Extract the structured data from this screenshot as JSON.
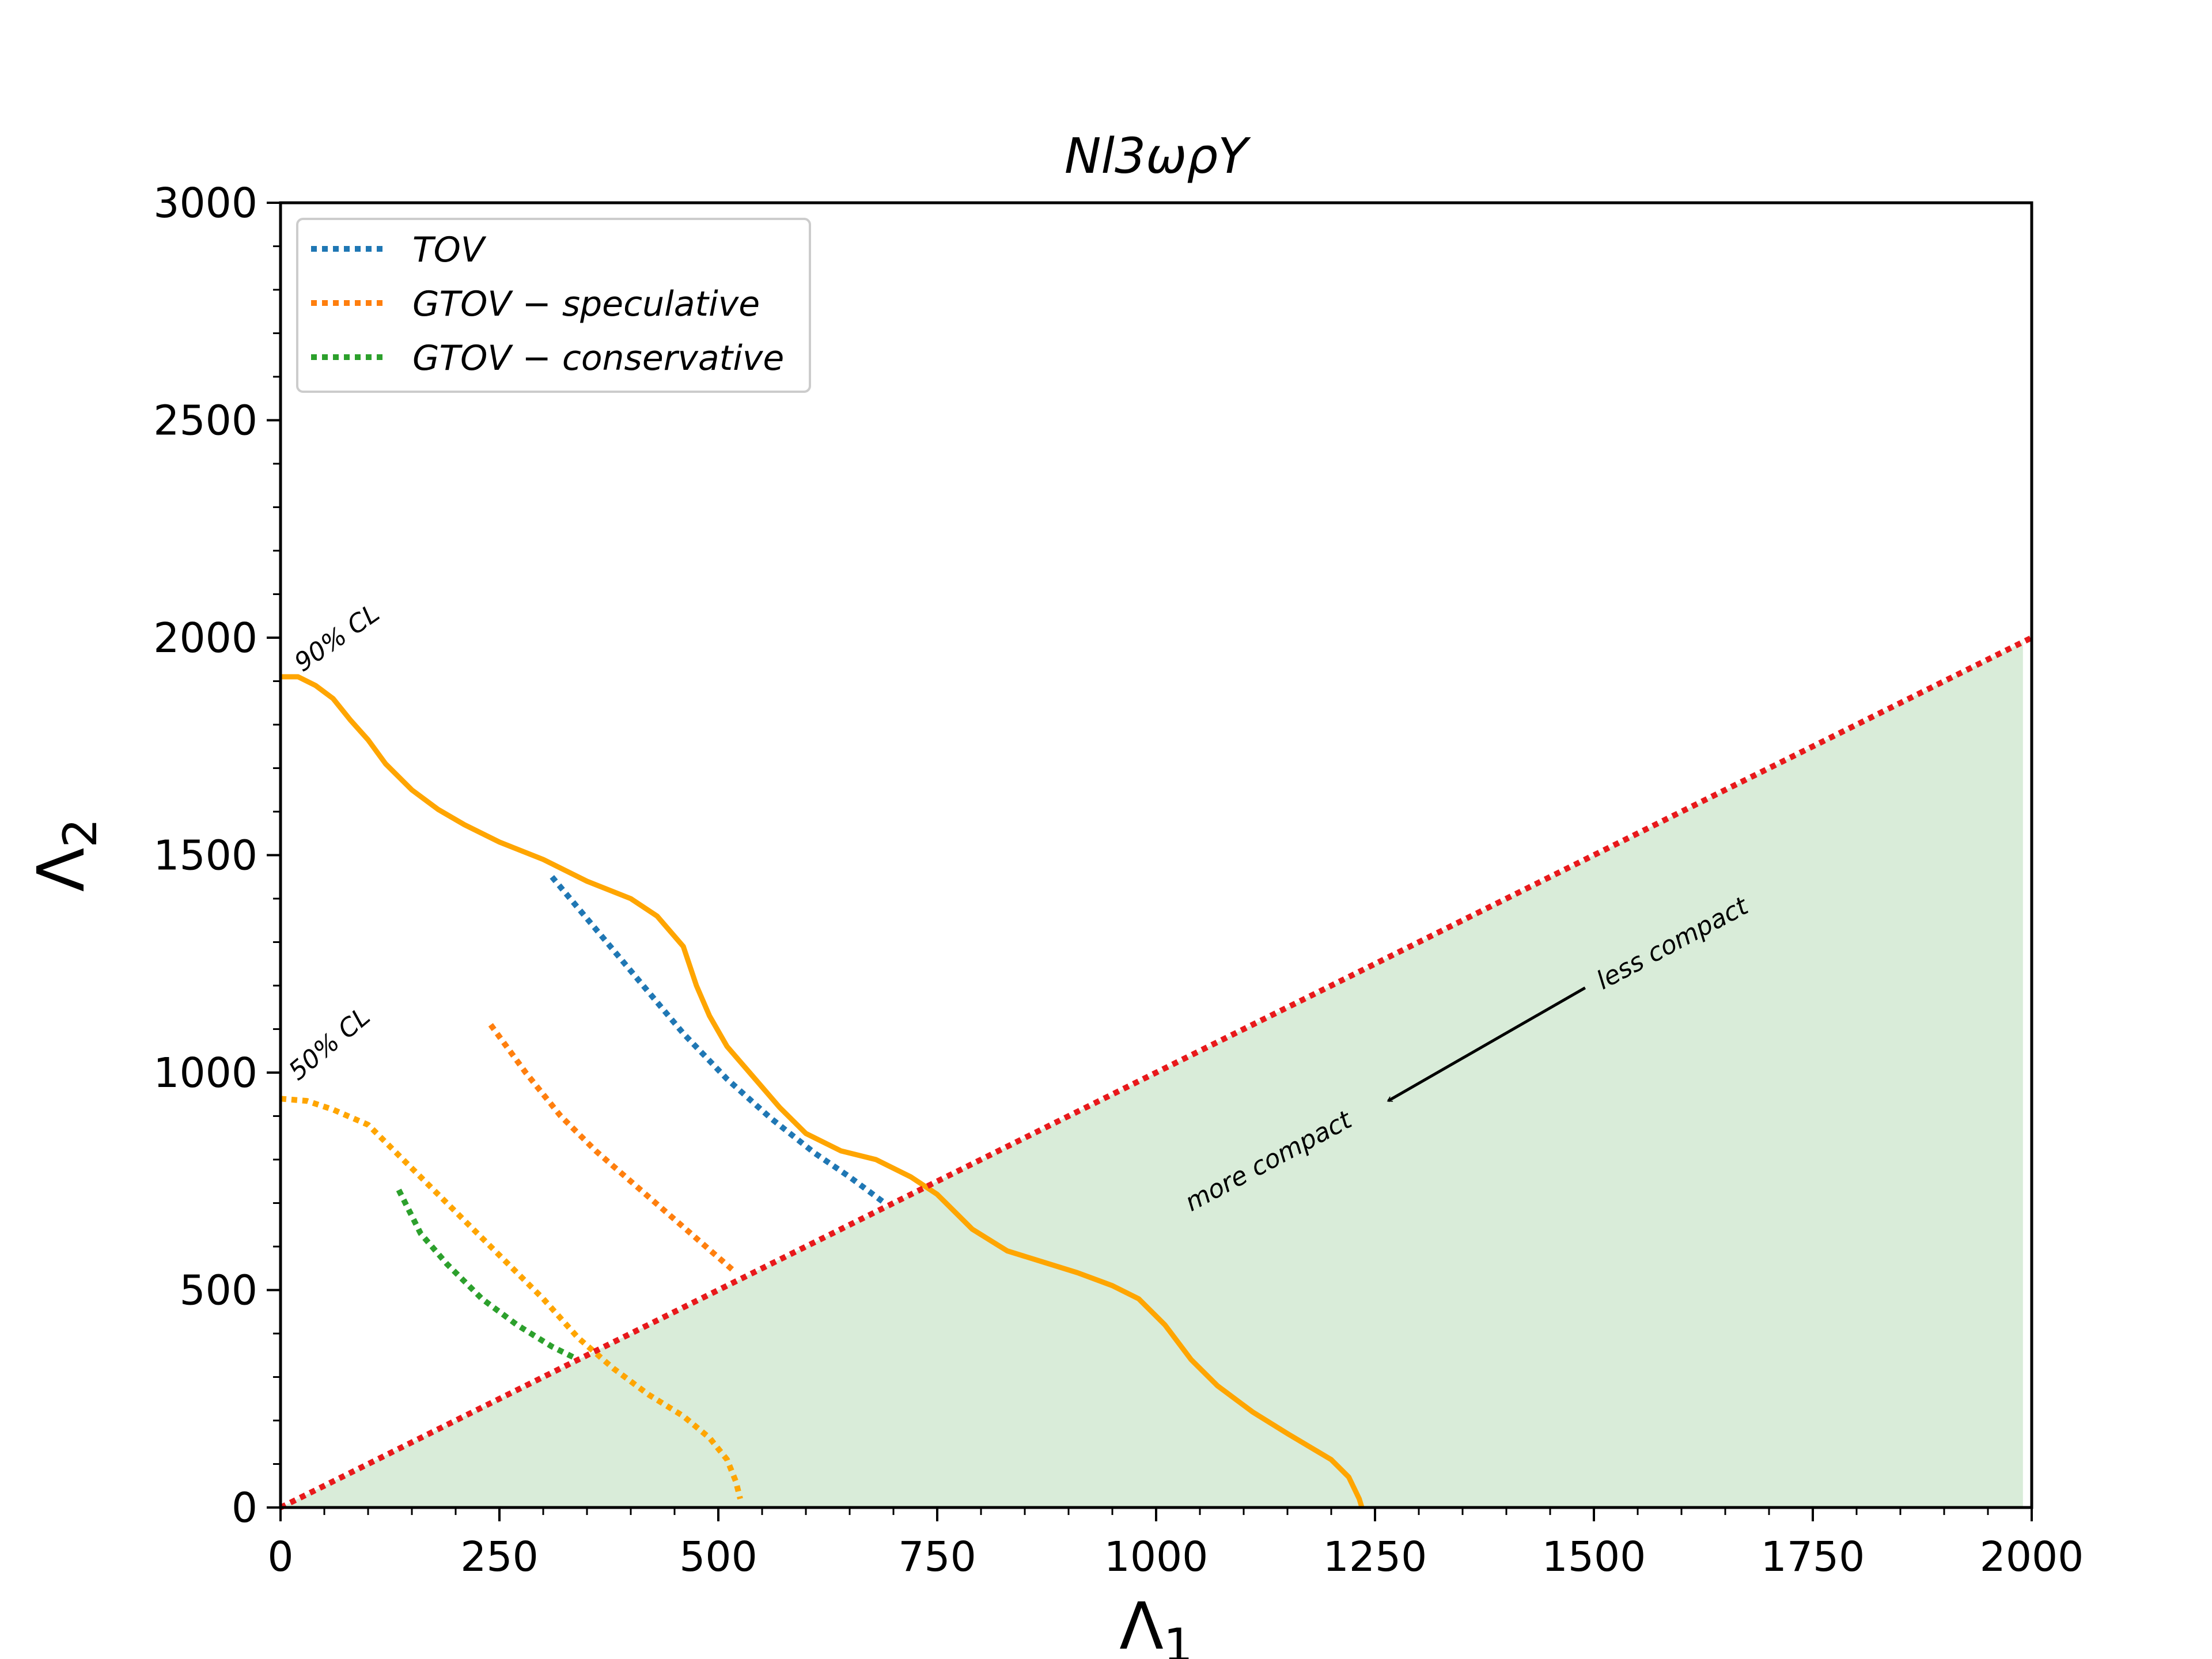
{
  "chart_data": {
    "type": "line",
    "title": "Nl3ωρY",
    "xlabel": "Λ",
    "xlabel_sub": "1",
    "ylabel": "Λ",
    "ylabel_sub": "2",
    "xlim": [
      0,
      2000
    ],
    "ylim": [
      0,
      3000
    ],
    "xticks": [
      0,
      250,
      500,
      750,
      1000,
      1250,
      1500,
      1750,
      2000
    ],
    "yticks": [
      0,
      500,
      1000,
      1500,
      2000,
      2500,
      3000
    ],
    "grid": false,
    "legend_position": "top-left",
    "legend": [
      {
        "name": "TOV",
        "color": "#1f77b4"
      },
      {
        "name": "GTOV − speculative",
        "color": "#ff7f0e"
      },
      {
        "name": "GTOV − conservative",
        "color": "#2ca02c"
      }
    ],
    "series": [
      {
        "name": "TOV",
        "style": "dotted",
        "color": "#1f77b4",
        "points": [
          [
            310,
            1450
          ],
          [
            360,
            1330
          ],
          [
            410,
            1210
          ],
          [
            460,
            1090
          ],
          [
            510,
            985
          ],
          [
            560,
            895
          ],
          [
            610,
            815
          ],
          [
            650,
            760
          ],
          [
            690,
            700
          ]
        ]
      },
      {
        "name": "GTOV − speculative",
        "style": "dotted",
        "color": "#ff7f0e",
        "points": [
          [
            240,
            1110
          ],
          [
            280,
            1000
          ],
          [
            320,
            900
          ],
          [
            360,
            820
          ],
          [
            400,
            750
          ],
          [
            440,
            680
          ],
          [
            480,
            610
          ],
          [
            520,
            540
          ]
        ]
      },
      {
        "name": "GTOV − conservative",
        "style": "dotted",
        "color": "#2ca02c",
        "points": [
          [
            135,
            730
          ],
          [
            160,
            630
          ],
          [
            190,
            560
          ],
          [
            230,
            480
          ],
          [
            270,
            420
          ],
          [
            310,
            370
          ],
          [
            340,
            340
          ]
        ]
      },
      {
        "name": "",
        "style": "solid",
        "color": "#ffa500",
        "points": [
          [
            0,
            1910
          ],
          [
            20,
            1910
          ],
          [
            40,
            1890
          ],
          [
            60,
            1860
          ],
          [
            80,
            1810
          ],
          [
            100,
            1765
          ],
          [
            120,
            1710
          ],
          [
            150,
            1650
          ],
          [
            180,
            1605
          ],
          [
            210,
            1570
          ],
          [
            250,
            1530
          ],
          [
            300,
            1490
          ],
          [
            350,
            1440
          ],
          [
            400,
            1400
          ],
          [
            430,
            1360
          ],
          [
            460,
            1290
          ],
          [
            475,
            1200
          ],
          [
            490,
            1130
          ],
          [
            510,
            1060
          ],
          [
            540,
            990
          ],
          [
            570,
            920
          ],
          [
            600,
            860
          ],
          [
            640,
            820
          ],
          [
            680,
            800
          ],
          [
            720,
            760
          ],
          [
            750,
            720
          ],
          [
            790,
            640
          ],
          [
            830,
            590
          ],
          [
            870,
            565
          ],
          [
            910,
            540
          ],
          [
            950,
            510
          ],
          [
            980,
            480
          ],
          [
            1010,
            420
          ],
          [
            1040,
            340
          ],
          [
            1070,
            280
          ],
          [
            1110,
            220
          ],
          [
            1150,
            170
          ],
          [
            1200,
            110
          ],
          [
            1220,
            70
          ],
          [
            1232,
            20
          ],
          [
            1235,
            0
          ]
        ]
      },
      {
        "name": "",
        "style": "dotted",
        "color": "#ffa500",
        "points": [
          [
            0,
            940
          ],
          [
            30,
            935
          ],
          [
            60,
            915
          ],
          [
            100,
            880
          ],
          [
            140,
            800
          ],
          [
            180,
            720
          ],
          [
            220,
            640
          ],
          [
            260,
            560
          ],
          [
            300,
            480
          ],
          [
            340,
            390
          ],
          [
            380,
            320
          ],
          [
            420,
            260
          ],
          [
            460,
            210
          ],
          [
            490,
            160
          ],
          [
            510,
            110
          ],
          [
            520,
            60
          ],
          [
            525,
            20
          ]
        ]
      },
      {
        "name": "",
        "style": "dotted",
        "color": "#e8191b",
        "points": [
          [
            0,
            0
          ],
          [
            2000,
            2000
          ]
        ]
      }
    ],
    "shaded_region": {
      "color": "#d9ecd9",
      "polygon": [
        [
          0,
          0
        ],
        [
          1990,
          1990
        ],
        [
          1990,
          0
        ]
      ]
    },
    "annotations": [
      {
        "text": "90% CL",
        "x": 25,
        "y": 1920,
        "rotation": -35
      },
      {
        "text": "50% CL",
        "x": 20,
        "y": 980,
        "rotation": -40
      },
      {
        "text": "less compact",
        "x": 1510,
        "y": 1190,
        "rotation": -28
      },
      {
        "text": "more compact",
        "x": 1040,
        "y": 680,
        "rotation": -28
      }
    ],
    "arrow": {
      "from": [
        1490,
        1195
      ],
      "to": [
        1265,
        935
      ]
    }
  }
}
